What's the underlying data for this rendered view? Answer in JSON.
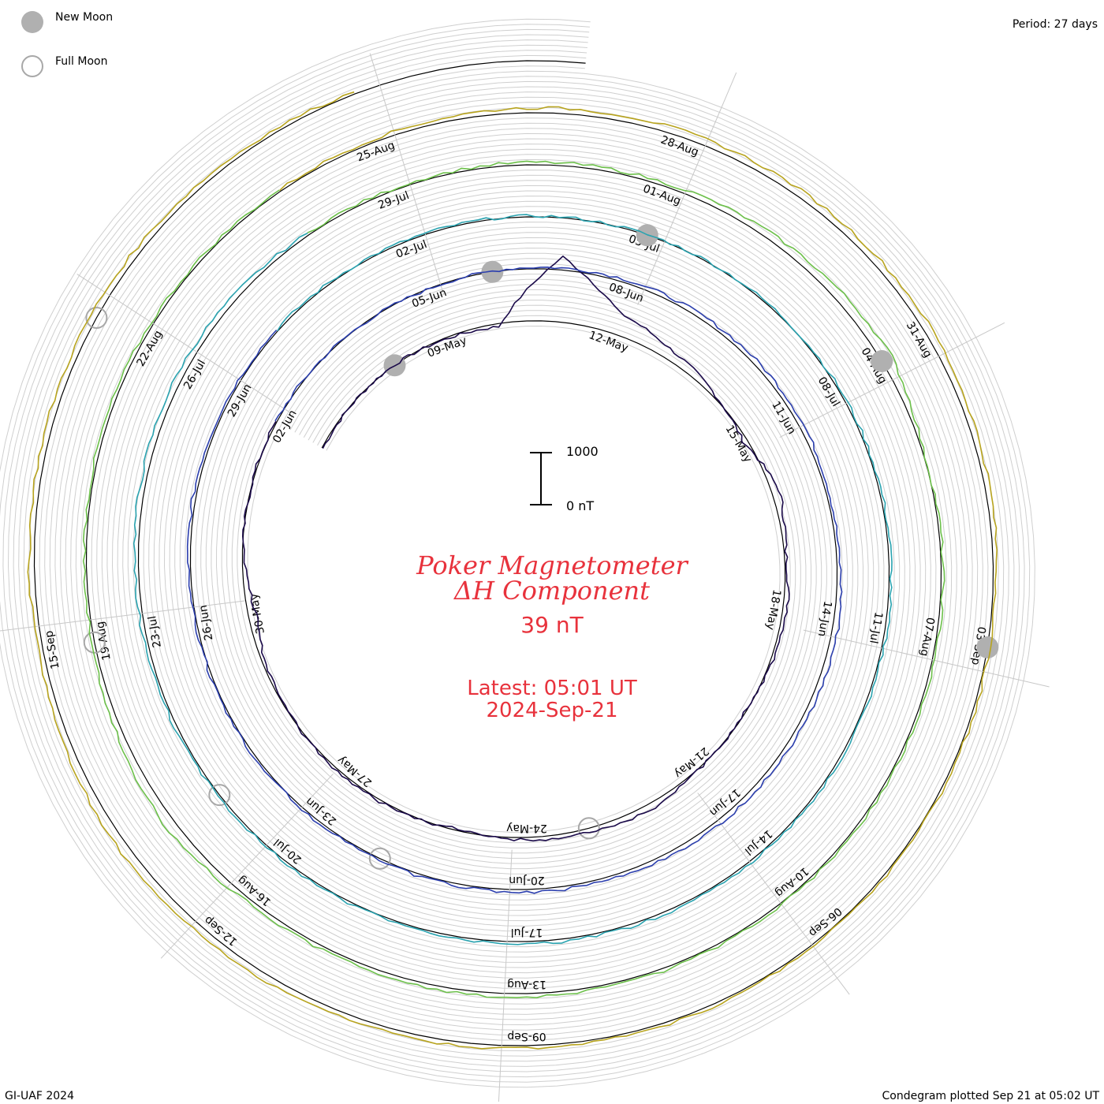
{
  "legend": {
    "new_moon_label": "New Moon",
    "full_moon_label": "Full Moon",
    "new_moon_color": "#b0b0b0",
    "full_moon_color": "#a8a8a8"
  },
  "period_label": "Period: 27 days",
  "title_line1": "Poker Magnetometer",
  "title_line2": "ΔH Component",
  "current_value": "39 nT",
  "latest_label": "Latest: 05:01 UT",
  "latest_date": "2024-Sep-21",
  "credit": "GI-UAF 2024",
  "plotted_label": "Condegram plotted Sep 21 at 05:02 UT",
  "scale": {
    "top_label": "1000",
    "bottom_label": "0 nT"
  },
  "chart_data": {
    "type": "line",
    "period_days": 27,
    "start_date": "2024-05-06",
    "end_date": "2024-09-21",
    "units": "nT",
    "scale_bar_nT": 1000,
    "date_labels": [
      "09-May",
      "12-May",
      "15-May",
      "18-May",
      "21-May",
      "24-May",
      "27-May",
      "30-May",
      "02-Jun",
      "05-Jun",
      "08-Jun",
      "11-Jun",
      "14-Jun",
      "17-Jun",
      "20-Jun",
      "23-Jun",
      "26-Jun",
      "29-Jun",
      "02-Jul",
      "05-Jul",
      "08-Jul",
      "11-Jul",
      "14-Jul",
      "17-Jul",
      "20-Jul",
      "23-Jul",
      "26-Jul",
      "29-Jul",
      "01-Aug",
      "04-Aug",
      "07-Aug",
      "10-Aug",
      "13-Aug",
      "16-Aug",
      "19-Aug",
      "22-Aug",
      "25-Aug",
      "28-Aug",
      "31-Aug",
      "03-Sep",
      "06-Sep",
      "09-Sep",
      "12-Sep",
      "15-Sep"
    ],
    "new_moons": [
      "2024-05-08",
      "2024-06-06",
      "2024-07-05",
      "2024-08-04",
      "2024-09-03"
    ],
    "full_moons": [
      "2024-05-23",
      "2024-06-22",
      "2024-07-21",
      "2024-08-19",
      "2024-09-18"
    ],
    "series": [
      {
        "values": [
          [
            "2024-05-06",
            -20
          ],
          [
            "2024-05-08",
            10
          ],
          [
            "2024-05-10",
            -60
          ],
          [
            "2024-05-11",
            1250
          ],
          [
            "2024-05-12",
            420
          ],
          [
            "2024-05-13",
            200
          ],
          [
            "2024-05-14",
            60
          ],
          [
            "2024-05-15",
            -80
          ],
          [
            "2024-05-16",
            150
          ],
          [
            "2024-05-17",
            30
          ],
          [
            "2024-05-18",
            90
          ],
          [
            "2024-05-19",
            40
          ],
          [
            "2024-05-20",
            -20
          ],
          [
            "2024-05-21",
            20
          ],
          [
            "2024-05-22",
            120
          ],
          [
            "2024-05-23",
            60
          ],
          [
            "2024-05-24",
            50
          ],
          [
            "2024-05-25",
            -40
          ],
          [
            "2024-05-26",
            30
          ],
          [
            "2024-05-27",
            40
          ],
          [
            "2024-05-28",
            10
          ],
          [
            "2024-05-29",
            -30
          ],
          [
            "2024-05-30",
            -150
          ],
          [
            "2024-05-31",
            -20
          ],
          [
            "2024-06-01",
            10
          ],
          [
            "2024-06-02",
            20
          ]
        ]
      },
      {
        "values": [
          [
            "2024-06-02",
            20
          ],
          [
            "2024-06-05",
            -10
          ],
          [
            "2024-06-08",
            60
          ],
          [
            "2024-06-11",
            90
          ],
          [
            "2024-06-13",
            40
          ],
          [
            "2024-06-14",
            110
          ],
          [
            "2024-06-17",
            80
          ],
          [
            "2024-06-20",
            50
          ],
          [
            "2024-06-23",
            30
          ],
          [
            "2024-06-26",
            20
          ],
          [
            "2024-06-28",
            60
          ],
          [
            "2024-06-30",
            30
          ]
        ]
      },
      {
        "values": [
          [
            "2024-06-30",
            30
          ],
          [
            "2024-07-02",
            20
          ],
          [
            "2024-07-05",
            10
          ],
          [
            "2024-07-08",
            30
          ],
          [
            "2024-07-11",
            40
          ],
          [
            "2024-07-14",
            30
          ],
          [
            "2024-07-17",
            50
          ],
          [
            "2024-07-20",
            20
          ],
          [
            "2024-07-23",
            60
          ],
          [
            "2024-07-26",
            120
          ],
          [
            "2024-07-28",
            40
          ]
        ]
      },
      {
        "values": [
          [
            "2024-07-28",
            40
          ],
          [
            "2024-07-29",
            30
          ],
          [
            "2024-08-01",
            60
          ],
          [
            "2024-08-04",
            210
          ],
          [
            "2024-08-05",
            20
          ],
          [
            "2024-08-07",
            40
          ],
          [
            "2024-08-10",
            30
          ],
          [
            "2024-08-13",
            60
          ],
          [
            "2024-08-16",
            70
          ],
          [
            "2024-08-17",
            200
          ],
          [
            "2024-08-19",
            40
          ],
          [
            "2024-08-22",
            50
          ],
          [
            "2024-08-24",
            30
          ]
        ]
      },
      {
        "values": [
          [
            "2024-08-24",
            30
          ],
          [
            "2024-08-25",
            60
          ],
          [
            "2024-08-28",
            120
          ],
          [
            "2024-08-31",
            140
          ],
          [
            "2024-09-03",
            40
          ],
          [
            "2024-09-06",
            30
          ],
          [
            "2024-09-09",
            50
          ],
          [
            "2024-09-12",
            130
          ],
          [
            "2024-09-13",
            180
          ],
          [
            "2024-09-15",
            90
          ],
          [
            "2024-09-18",
            120
          ],
          [
            "2024-09-21",
            39
          ]
        ]
      }
    ]
  }
}
